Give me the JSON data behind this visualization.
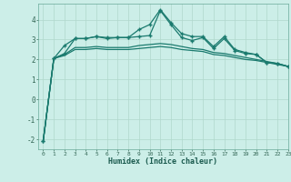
{
  "x": [
    0,
    1,
    2,
    3,
    4,
    5,
    6,
    7,
    8,
    9,
    10,
    11,
    12,
    13,
    14,
    15,
    16,
    17,
    18,
    19,
    20,
    21,
    22,
    23
  ],
  "line1": [
    -2.1,
    2.05,
    2.7,
    3.05,
    3.05,
    3.15,
    3.05,
    3.1,
    3.1,
    3.5,
    3.75,
    4.5,
    3.85,
    3.3,
    3.15,
    3.15,
    2.65,
    3.15,
    2.5,
    2.35,
    2.25,
    1.85,
    1.8,
    1.65
  ],
  "line2": [
    -2.1,
    2.05,
    2.3,
    3.05,
    3.05,
    3.15,
    3.1,
    3.1,
    3.1,
    3.15,
    3.2,
    4.45,
    3.75,
    3.1,
    2.95,
    3.1,
    2.55,
    3.05,
    2.45,
    2.3,
    2.25,
    1.85,
    1.8,
    1.65
  ],
  "line3": [
    -2.1,
    2.05,
    2.25,
    2.6,
    2.6,
    2.65,
    2.6,
    2.6,
    2.6,
    2.7,
    2.75,
    2.8,
    2.75,
    2.65,
    2.55,
    2.5,
    2.35,
    2.3,
    2.2,
    2.1,
    2.0,
    1.9,
    1.8,
    1.65
  ],
  "line4": [
    -2.1,
    2.05,
    2.2,
    2.5,
    2.5,
    2.55,
    2.5,
    2.5,
    2.5,
    2.55,
    2.6,
    2.65,
    2.6,
    2.5,
    2.45,
    2.4,
    2.25,
    2.2,
    2.1,
    2.0,
    1.95,
    1.85,
    1.75,
    1.65
  ],
  "line_color": "#1a7a6e",
  "bg_color": "#cceee8",
  "grid_major_color": "#b0d8cc",
  "grid_minor_color": "#c8e8e0",
  "xlabel": "Humidex (Indice chaleur)",
  "ylim": [
    -2.5,
    4.8
  ],
  "xlim": [
    -0.5,
    23
  ],
  "yticks": [
    -2,
    -1,
    0,
    1,
    2,
    3,
    4
  ],
  "xticks": [
    0,
    1,
    2,
    3,
    4,
    5,
    6,
    7,
    8,
    9,
    10,
    11,
    12,
    13,
    14,
    15,
    16,
    17,
    18,
    19,
    20,
    21,
    22,
    23
  ]
}
